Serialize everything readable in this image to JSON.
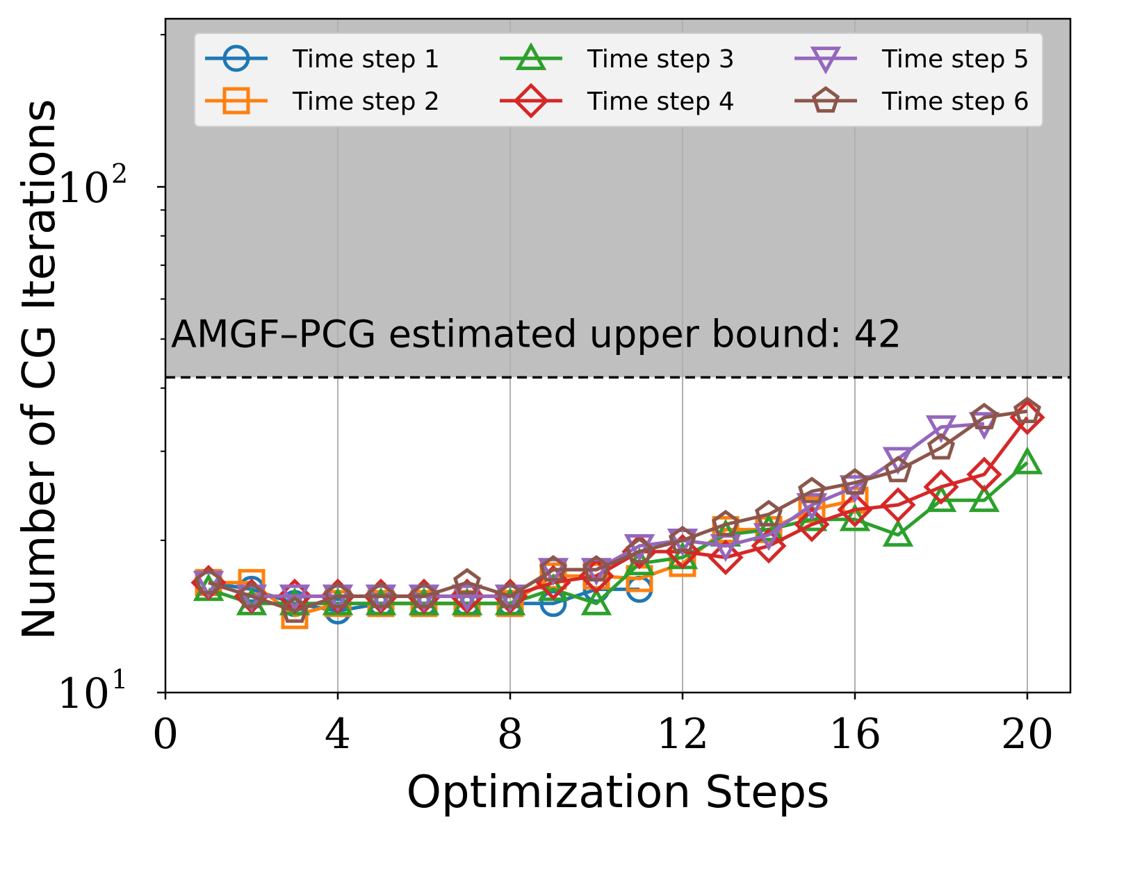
{
  "chart_data": {
    "type": "line",
    "title": "",
    "xlabel": "Optimization Steps",
    "ylabel": "Number of CG Iterations",
    "xlim": [
      0,
      21
    ],
    "ylim": [
      10,
      215
    ],
    "yscale": "log",
    "xticks": [
      "0",
      "4",
      "8",
      "12",
      "16",
      "20"
    ],
    "xtick_values": [
      0,
      4,
      8,
      12,
      16,
      20
    ],
    "yticks": [
      {
        "value": 10,
        "base": "10",
        "exp": "1"
      },
      {
        "value": 100,
        "base": "10",
        "exp": "2"
      }
    ],
    "grid": true,
    "legend_position": "top",
    "threshold": {
      "value": 42,
      "label": "AMGF–PCG estimated upper bound: 42",
      "shaded_region": "above",
      "shade_color": "#bfbfbf",
      "line_style": "dashed"
    },
    "series": [
      {
        "name": "Time step 1",
        "color": "#1f77b4",
        "marker": "circle",
        "x": [
          1,
          2,
          3,
          4,
          5,
          6,
          7,
          8,
          9,
          10,
          11
        ],
        "y": [
          16.5,
          16,
          15,
          14.5,
          15,
          15,
          15,
          15,
          15,
          16,
          16
        ]
      },
      {
        "name": "Time step 2",
        "color": "#ff7f0e",
        "marker": "square",
        "x": [
          1,
          2,
          3,
          4,
          5,
          6,
          7,
          8,
          9,
          10,
          11,
          12,
          13,
          14,
          15,
          16
        ],
        "y": [
          16.5,
          16.5,
          14.2,
          15,
          15,
          15,
          15,
          15,
          17,
          17,
          16.8,
          18,
          21,
          21,
          23,
          24
        ]
      },
      {
        "name": "Time step 3",
        "color": "#2ca02c",
        "marker": "triangle-up",
        "x": [
          1,
          2,
          3,
          4,
          5,
          6,
          7,
          8,
          9,
          10,
          11,
          12,
          13,
          14,
          15,
          16,
          17,
          18,
          19,
          20
        ],
        "y": [
          16,
          15,
          15,
          15,
          15,
          15,
          15,
          15,
          16,
          15,
          18,
          18.5,
          20.5,
          21,
          22,
          22,
          20.5,
          24,
          24,
          28.5
        ]
      },
      {
        "name": "Time step 4",
        "color": "#d62728",
        "marker": "diamond",
        "x": [
          1,
          2,
          3,
          4,
          5,
          6,
          7,
          8,
          9,
          10,
          11,
          12,
          13,
          14,
          15,
          16,
          17,
          18,
          19,
          20
        ],
        "y": [
          16.5,
          15.5,
          15.5,
          15.5,
          15.5,
          15.5,
          15.5,
          15.5,
          16.5,
          17,
          19,
          19,
          18.5,
          19.5,
          21.5,
          23,
          23.5,
          25.5,
          27,
          35
        ]
      },
      {
        "name": "Time step 5",
        "color": "#9467bd",
        "marker": "triangle-down",
        "x": [
          1,
          2,
          3,
          4,
          5,
          6,
          7,
          8,
          9,
          10,
          11,
          12,
          13,
          14,
          15,
          16,
          17,
          18,
          19
        ],
        "y": [
          16.5,
          15.5,
          15.5,
          15.5,
          15.5,
          15.5,
          15.5,
          15.5,
          17.5,
          17.5,
          19.5,
          20,
          19.5,
          20.5,
          23.5,
          25.5,
          29,
          33.5,
          34
        ]
      },
      {
        "name": "Time step 6",
        "color": "#8c564b",
        "marker": "pentagon",
        "x": [
          1,
          2,
          3,
          4,
          5,
          6,
          7,
          8,
          9,
          10,
          11,
          12,
          13,
          14,
          15,
          16,
          17,
          18,
          19,
          20
        ],
        "y": [
          16.5,
          15.5,
          14.5,
          15.5,
          15.5,
          15.5,
          16.5,
          15.5,
          17.5,
          17.5,
          19,
          20,
          21.5,
          22.5,
          25,
          26,
          27.5,
          30.5,
          35,
          36
        ]
      }
    ]
  }
}
